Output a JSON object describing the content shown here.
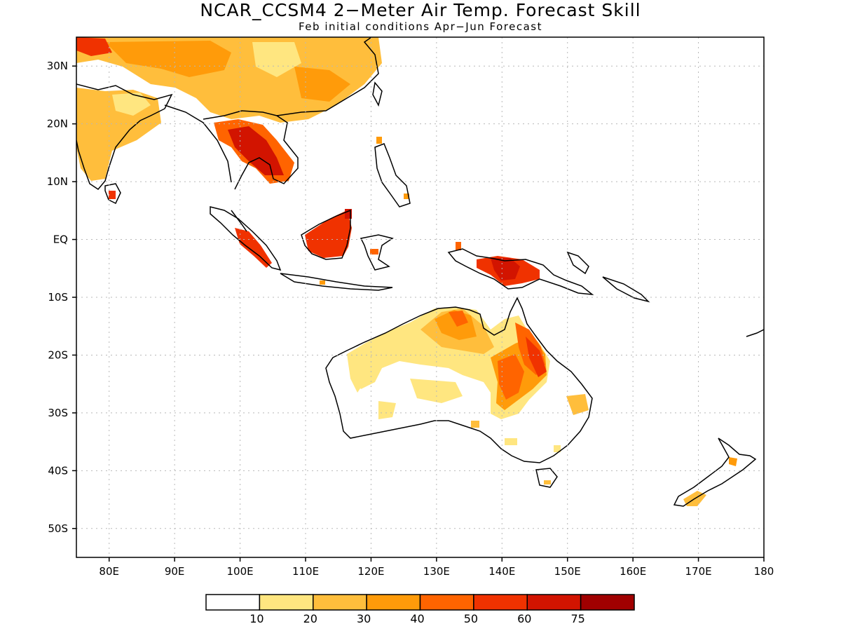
{
  "title": "NCAR_CCSM4 2−Meter Air Temp. Forecast Skill",
  "subtitle": "Feb initial conditions  Apr−Jun Forecast",
  "map": {
    "lon_range": [
      75,
      180
    ],
    "lat_range": [
      -55,
      35
    ],
    "lat_ticks": [
      {
        "value": 30,
        "label": "30N"
      },
      {
        "value": 20,
        "label": "20N"
      },
      {
        "value": 10,
        "label": "10N"
      },
      {
        "value": 0,
        "label": "EQ"
      },
      {
        "value": -10,
        "label": "10S"
      },
      {
        "value": -20,
        "label": "20S"
      },
      {
        "value": -30,
        "label": "30S"
      },
      {
        "value": -40,
        "label": "40S"
      },
      {
        "value": -50,
        "label": "50S"
      }
    ],
    "lon_ticks": [
      {
        "value": 80,
        "label": "80E"
      },
      {
        "value": 90,
        "label": "90E"
      },
      {
        "value": 100,
        "label": "100E"
      },
      {
        "value": 110,
        "label": "110E"
      },
      {
        "value": 120,
        "label": "120E"
      },
      {
        "value": 130,
        "label": "130E"
      },
      {
        "value": 140,
        "label": "140E"
      },
      {
        "value": 150,
        "label": "150E"
      },
      {
        "value": 160,
        "label": "160E"
      },
      {
        "value": 170,
        "label": "170E"
      },
      {
        "value": 180,
        "label": "180"
      }
    ],
    "grid": true
  },
  "colorbar": {
    "bins": [
      {
        "color": "#ffffff"
      },
      {
        "color": "#ffe680"
      },
      {
        "color": "#ffbe3c"
      },
      {
        "color": "#ff9b0a"
      },
      {
        "color": "#ff6400"
      },
      {
        "color": "#f03200"
      },
      {
        "color": "#d21400"
      },
      {
        "color": "#a00000"
      }
    ],
    "labels": [
      "10",
      "20",
      "30",
      "40",
      "50",
      "60",
      "75"
    ]
  }
}
